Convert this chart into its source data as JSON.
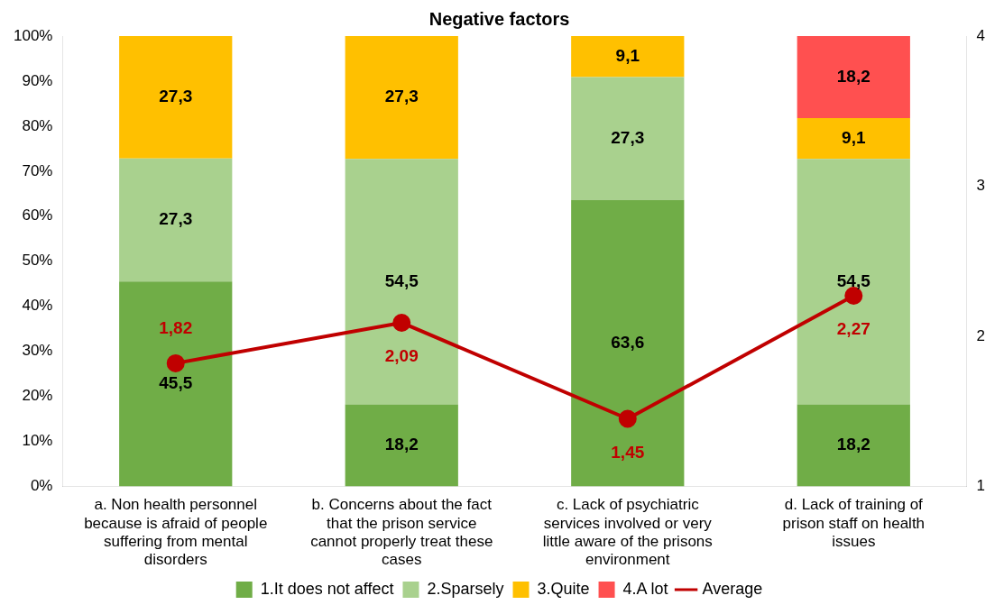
{
  "chart_data": {
    "type": "bar",
    "title": "Negative factors",
    "stacked": true,
    "categories": [
      "a. Non health personnel because is afraid of people suffering from mental disorders",
      "b. Concerns about the fact that the prison service cannot properly treat these cases",
      "c. Lack of psychiatric services involved or very little aware of the prisons environment",
      "d. Lack of training of prison staff on health issues"
    ],
    "series": [
      {
        "name": "1.It does not affect",
        "color": "#70ad47",
        "values": [
          45.5,
          18.2,
          63.6,
          18.2
        ],
        "value_labels": [
          "45,5",
          "18,2",
          "63,6",
          "18,2"
        ]
      },
      {
        "name": "2.Sparsely",
        "color": "#a9d18e",
        "values": [
          27.3,
          54.5,
          27.3,
          54.5
        ],
        "value_labels": [
          "27,3",
          "54,5",
          "27,3",
          "54,5"
        ]
      },
      {
        "name": "3.Quite",
        "color": "#ffc000",
        "values": [
          27.3,
          27.3,
          9.1,
          9.1
        ],
        "value_labels": [
          "27,3",
          "27,3",
          "9,1",
          "9,1"
        ]
      },
      {
        "name": "4.A lot",
        "color": "#ff5050",
        "values": [
          0,
          0,
          0,
          18.2
        ],
        "value_labels": [
          null,
          null,
          null,
          "18,2"
        ]
      },
      {
        "name": "Average",
        "type": "line",
        "axis": "y2",
        "color": "#c00000",
        "values": [
          1.82,
          2.09,
          1.45,
          2.27
        ],
        "value_labels": [
          "1,82",
          "2,09",
          "1,45",
          "2,27"
        ]
      }
    ],
    "ylim": [
      0,
      100
    ],
    "yticks": [
      {
        "value": 0,
        "label": "0%"
      },
      {
        "value": 10,
        "label": "10%"
      },
      {
        "value": 20,
        "label": "20%"
      },
      {
        "value": 30,
        "label": "30%"
      },
      {
        "value": 40,
        "label": "40%"
      },
      {
        "value": 50,
        "label": "50%"
      },
      {
        "value": 60,
        "label": "60%"
      },
      {
        "value": 70,
        "label": "70%"
      },
      {
        "value": 80,
        "label": "80%"
      },
      {
        "value": 90,
        "label": "90%"
      },
      {
        "value": 100,
        "label": "100%"
      }
    ],
    "y2lim": [
      1,
      4
    ],
    "y2ticks": [
      1,
      2,
      3,
      4
    ],
    "legend": "bottom",
    "marker": "circle",
    "grid": false
  }
}
